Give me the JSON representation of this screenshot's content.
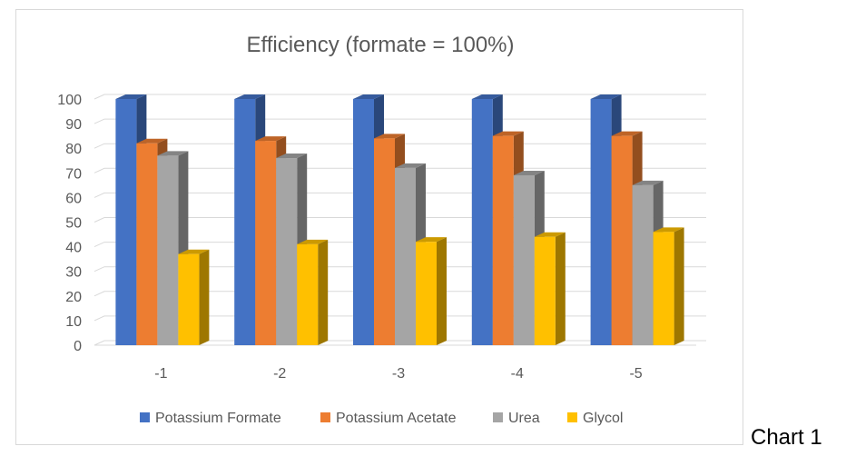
{
  "caption": "Chart 1",
  "chart_data": {
    "type": "bar",
    "style": "3d-clustered-column",
    "title": "Efficiency (formate = 100%)",
    "xlabel": "",
    "ylabel": "",
    "categories": [
      "-1",
      "-2",
      "-3",
      "-4",
      "-5"
    ],
    "ylim": [
      0,
      100
    ],
    "yticks": [
      0,
      10,
      20,
      30,
      40,
      50,
      60,
      70,
      80,
      90,
      100
    ],
    "grid": true,
    "legend": "bottom",
    "series": [
      {
        "name": "Potassium Formate",
        "color": "#4472C4",
        "values": [
          100,
          100,
          100,
          100,
          100
        ]
      },
      {
        "name": "Potassium Acetate",
        "color": "#ED7D31",
        "values": [
          82,
          83,
          84,
          85,
          85
        ]
      },
      {
        "name": "Urea",
        "color": "#A5A5A5",
        "values": [
          77,
          76,
          72,
          69,
          65
        ]
      },
      {
        "name": "Glycol",
        "color": "#FFC000",
        "values": [
          37,
          41,
          42,
          44,
          46
        ]
      }
    ]
  }
}
